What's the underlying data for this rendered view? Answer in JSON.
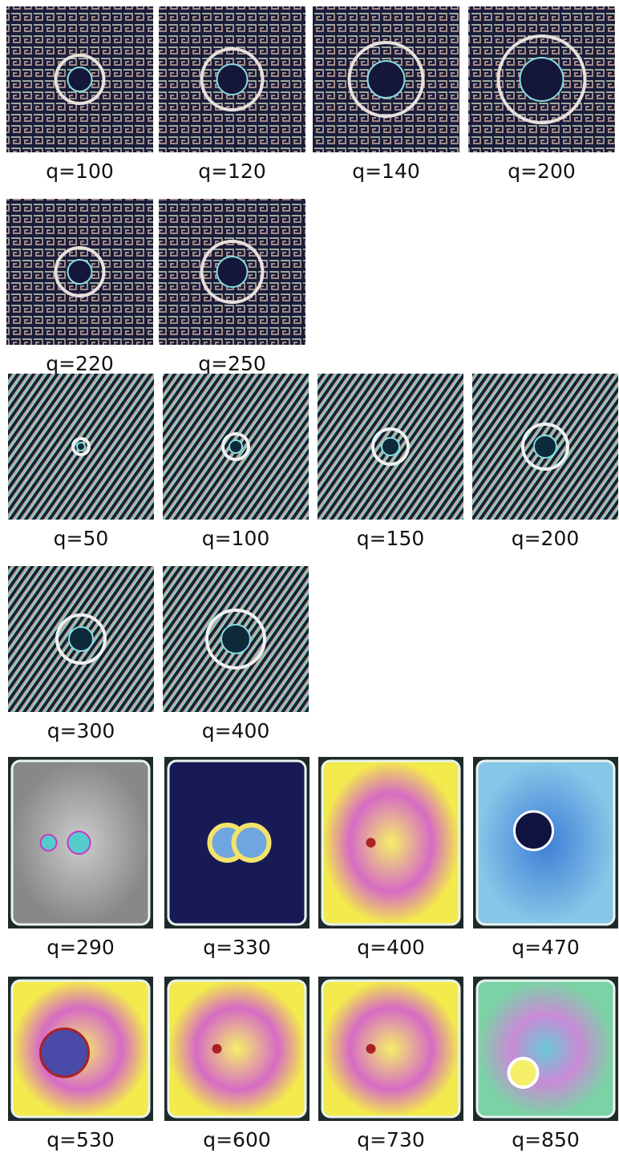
{
  "groups": [
    {
      "rows": [
        [
          "q=100",
          "q=120",
          "q=140",
          "q=200"
        ],
        [
          "q=220",
          "q=250"
        ]
      ]
    },
    {
      "rows": [
        [
          "q=50",
          "q=100",
          "q=150",
          "q=200"
        ],
        [
          "q=300",
          "q=400"
        ]
      ]
    },
    {
      "rows": [
        [
          "q=290",
          "q=330",
          "q=400",
          "q=470"
        ],
        [
          "q=530",
          "q=600",
          "q=730",
          "q=850"
        ]
      ]
    }
  ]
}
